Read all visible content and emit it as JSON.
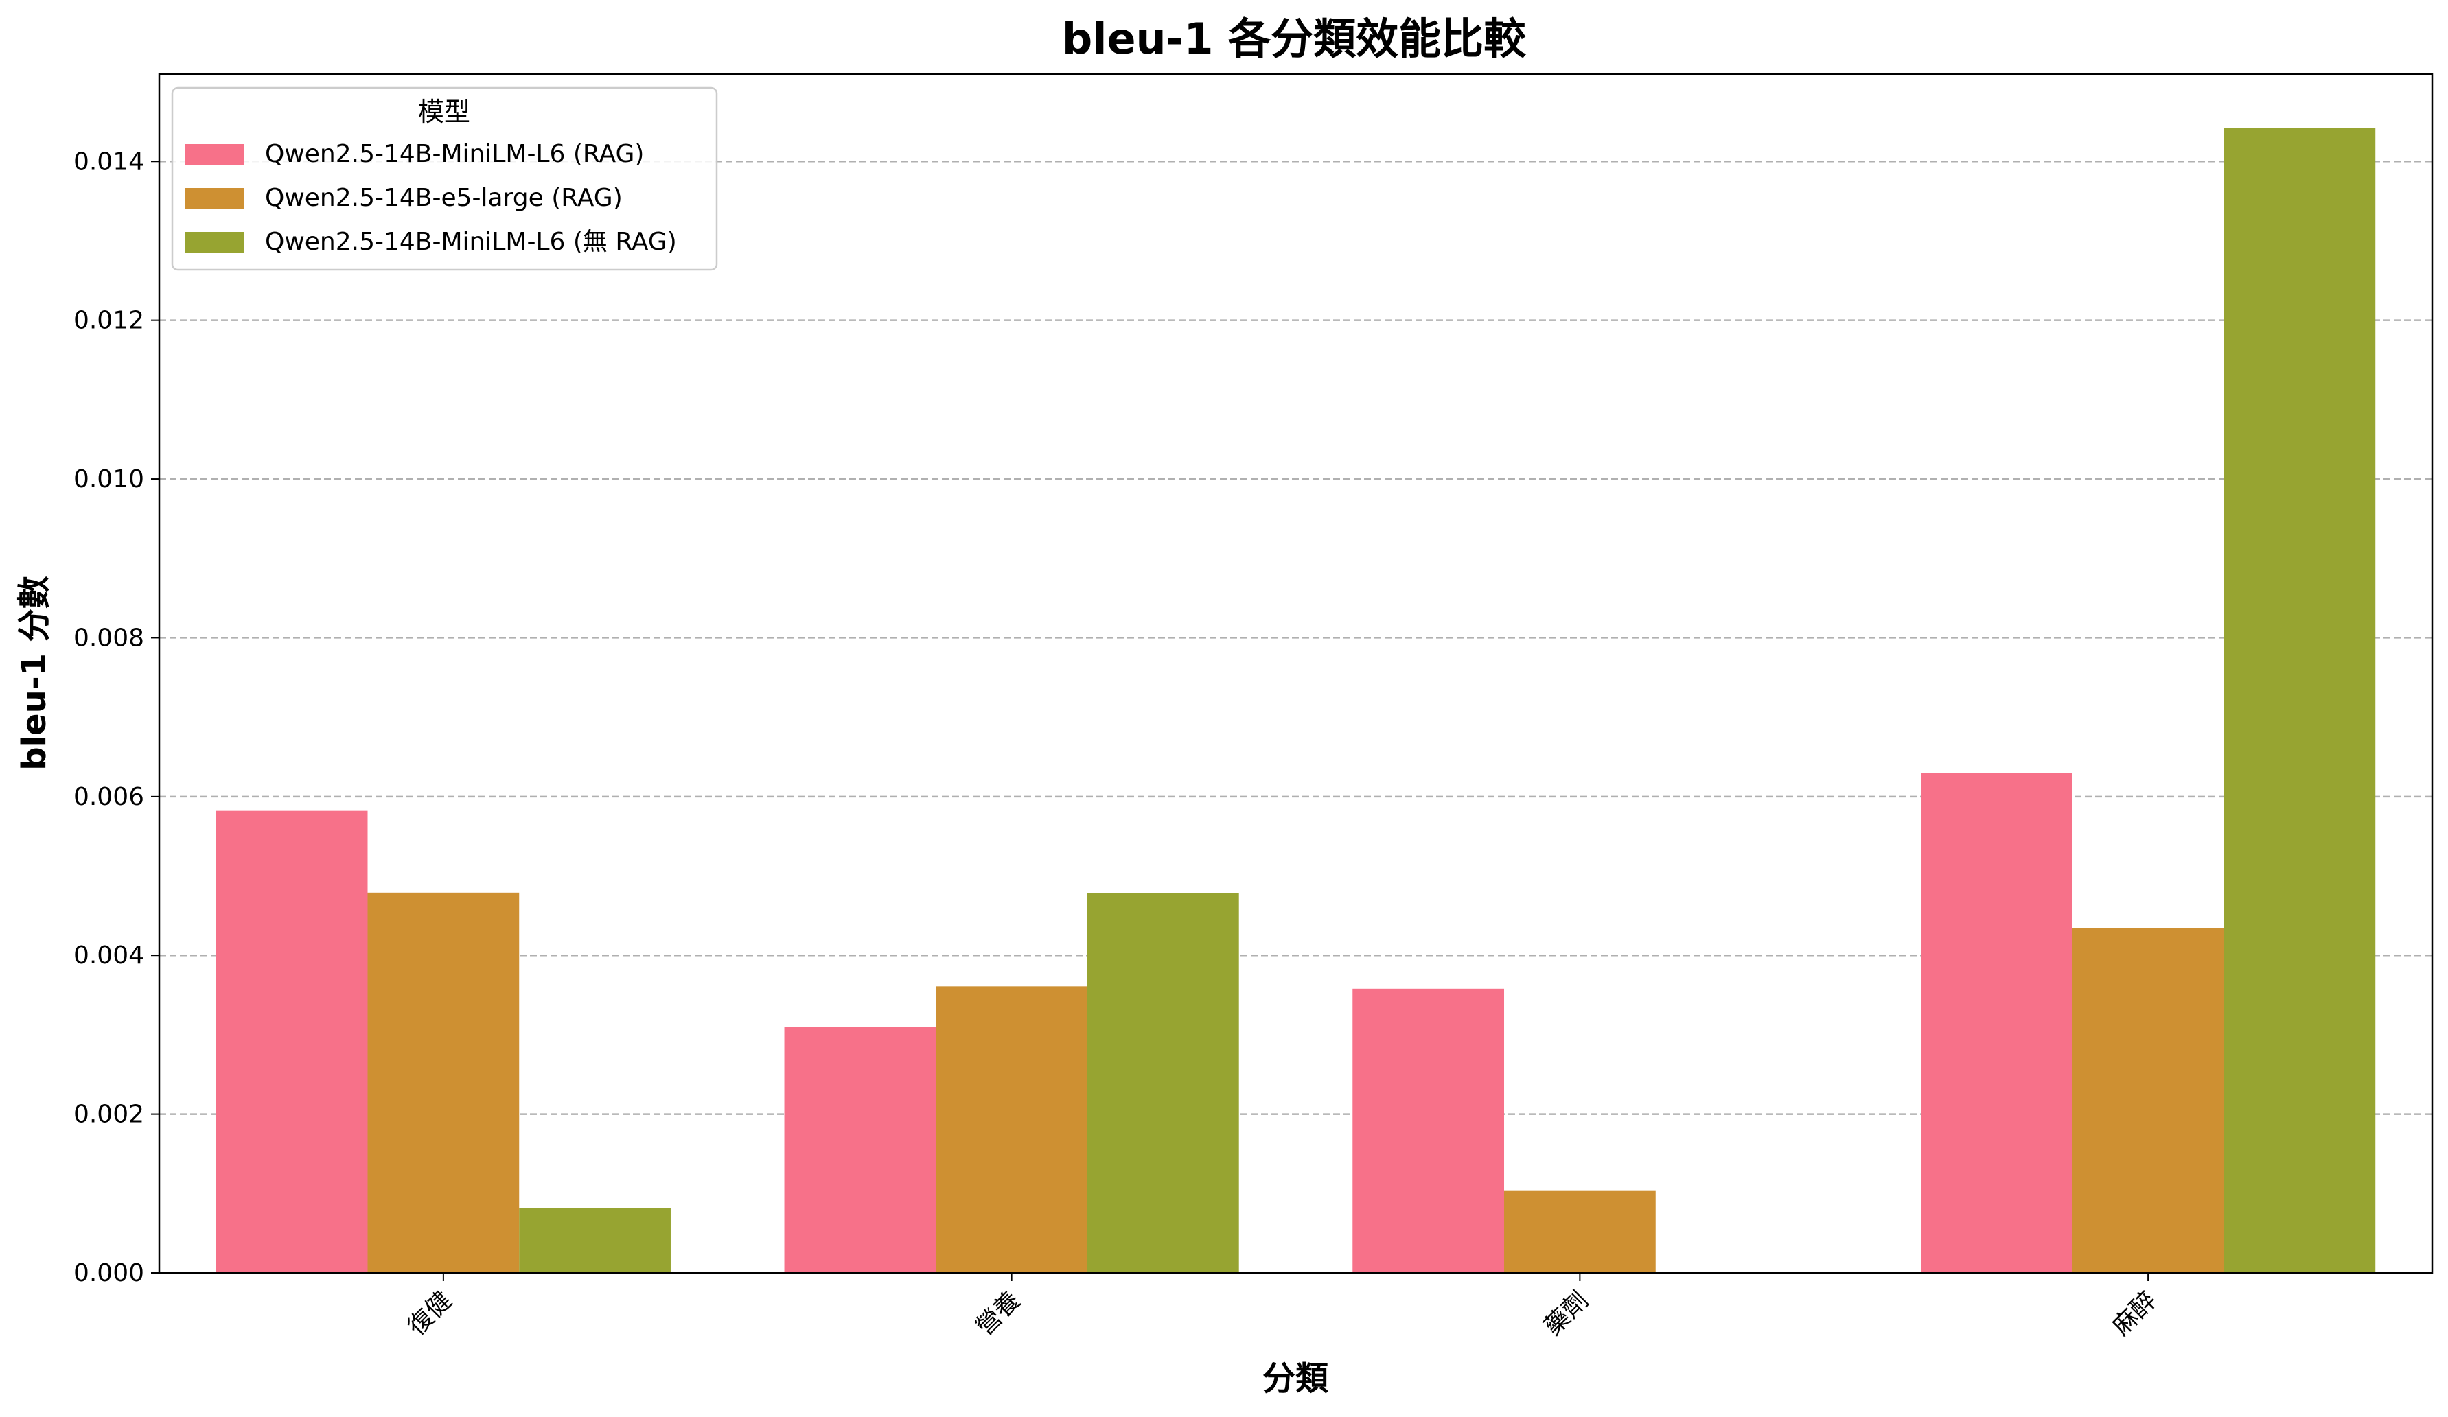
{
  "chart_data": {
    "type": "bar",
    "title": "bleu-1 各分類效能比較",
    "xlabel": "分類",
    "ylabel": "bleu-1 分數",
    "categories": [
      "復健",
      "營養",
      "藥劑",
      "麻醉"
    ],
    "series": [
      {
        "name": "Qwen2.5-14B-MiniLM-L6 (RAG)",
        "color": "#f77189",
        "values": [
          0.00582,
          0.0031,
          0.00358,
          0.0063
        ]
      },
      {
        "name": "Qwen2.5-14B-e5-large (RAG)",
        "color": "#ce9032",
        "values": [
          0.00479,
          0.00361,
          0.00104,
          0.00434
        ]
      },
      {
        "name": "Qwen2.5-14B-MiniLM-L6 (無 RAG)",
        "color": "#97a431",
        "values": [
          0.00082,
          0.00478,
          0.0,
          0.01442
        ]
      }
    ],
    "ylim": [
      0,
      0.0151
    ],
    "yticks": [
      "0.000",
      "0.002",
      "0.004",
      "0.006",
      "0.008",
      "0.010",
      "0.012",
      "0.014"
    ],
    "ytick_values": [
      0,
      0.002,
      0.004,
      0.006,
      0.008,
      0.01,
      0.012,
      0.014
    ],
    "grid": "y-dashed",
    "legend": {
      "title": "模型",
      "placement": "top-left"
    }
  }
}
